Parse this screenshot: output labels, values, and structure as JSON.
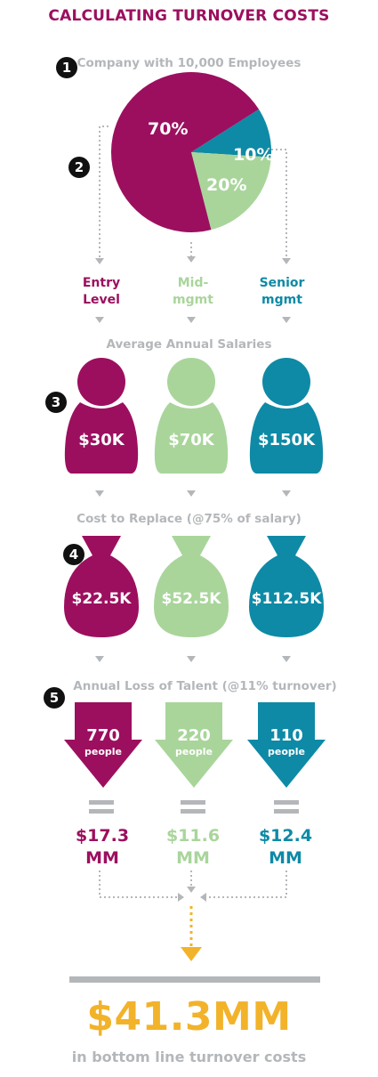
{
  "title": "CALCULATING TURNOVER COSTS",
  "colors": {
    "entry": "#9c0f5f",
    "mid": "#a9d59b",
    "senior": "#0e8aa6",
    "gray": "#b4b7ba",
    "gold": "#f2b32a"
  },
  "steps": [
    "1",
    "2",
    "3",
    "4",
    "5"
  ],
  "pie": {
    "title": "Company with 10,000 Employees",
    "slices": [
      {
        "label": "70%",
        "value": 70
      },
      {
        "label": "20%",
        "value": 20
      },
      {
        "label": "10%",
        "value": 10
      }
    ]
  },
  "levels": {
    "entry": {
      "line1": "Entry",
      "line2": "Level"
    },
    "mid": {
      "line1": "Mid-",
      "line2": "mgmt"
    },
    "senior": {
      "line1": "Senior",
      "line2": "mgmt"
    }
  },
  "salaries": {
    "heading": "Average Annual Salaries",
    "entry": "$30K",
    "mid": "$70K",
    "senior": "$150K"
  },
  "replace": {
    "heading": "Cost to Replace (@75% of salary)",
    "entry": "$22.5K",
    "mid": "$52.5K",
    "senior": "$112.5K"
  },
  "loss": {
    "heading": "Annual Loss of Talent (@11% turnover)",
    "unit": "people",
    "entry": "770",
    "mid": "220",
    "senior": "110"
  },
  "costs": {
    "entry": {
      "amount": "$17.3",
      "unit": "MM"
    },
    "mid": {
      "amount": "$11.6",
      "unit": "MM"
    },
    "senior": {
      "amount": "$12.4",
      "unit": "MM"
    }
  },
  "total": {
    "value": "$41.3MM",
    "caption": "in bottom line turnover costs"
  }
}
